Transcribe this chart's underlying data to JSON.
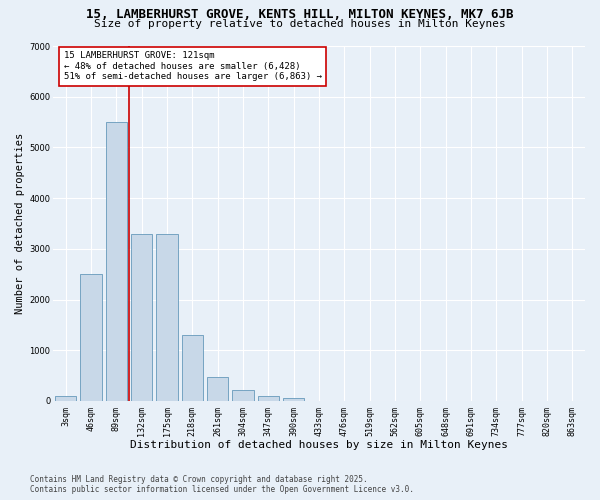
{
  "title1": "15, LAMBERHURST GROVE, KENTS HILL, MILTON KEYNES, MK7 6JB",
  "title2": "Size of property relative to detached houses in Milton Keynes",
  "xlabel": "Distribution of detached houses by size in Milton Keynes",
  "ylabel": "Number of detached properties",
  "categories": [
    "3sqm",
    "46sqm",
    "89sqm",
    "132sqm",
    "175sqm",
    "218sqm",
    "261sqm",
    "304sqm",
    "347sqm",
    "390sqm",
    "433sqm",
    "476sqm",
    "519sqm",
    "562sqm",
    "605sqm",
    "648sqm",
    "691sqm",
    "734sqm",
    "777sqm",
    "820sqm",
    "863sqm"
  ],
  "values": [
    100,
    2500,
    5500,
    3300,
    3300,
    1300,
    480,
    210,
    90,
    60,
    0,
    0,
    0,
    0,
    0,
    0,
    0,
    0,
    0,
    0,
    0
  ],
  "bar_color": "#c8d8e8",
  "bar_edge_color": "#6699bb",
  "vline_color": "#cc0000",
  "annotation_text": "15 LAMBERHURST GROVE: 121sqm\n← 48% of detached houses are smaller (6,428)\n51% of semi-detached houses are larger (6,863) →",
  "annotation_box_color": "#ffffff",
  "annotation_box_edge": "#cc0000",
  "ylim": [
    0,
    7000
  ],
  "yticks": [
    0,
    1000,
    2000,
    3000,
    4000,
    5000,
    6000,
    7000
  ],
  "bg_color": "#e8f0f8",
  "plot_bg_color": "#e8f0f8",
  "grid_color": "#ffffff",
  "footer1": "Contains HM Land Registry data © Crown copyright and database right 2025.",
  "footer2": "Contains public sector information licensed under the Open Government Licence v3.0.",
  "title1_fontsize": 9,
  "title2_fontsize": 8,
  "axis_label_fontsize": 7.5,
  "tick_fontsize": 6,
  "annotation_fontsize": 6.5,
  "footer_fontsize": 5.5
}
